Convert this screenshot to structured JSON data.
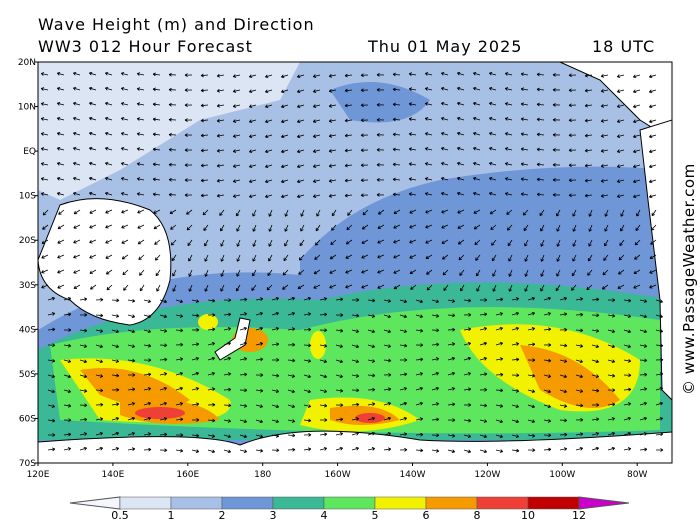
{
  "header": {
    "title": "Wave Height (m) and Direction",
    "subtitle": "WW3 012 Hour Forecast",
    "date": "Thu 01 May 2025",
    "time": "18 UTC"
  },
  "watermark": "© www.PassageWeather.com",
  "map": {
    "latitude_labels": [
      "20N",
      "10N",
      "EQ",
      "10S",
      "20S",
      "30S",
      "40S",
      "50S",
      "60S",
      "70S"
    ],
    "longitude_labels": [
      "120E",
      "140E",
      "160E",
      "180",
      "160W",
      "140W",
      "120W",
      "100W",
      "80W"
    ]
  },
  "legend": {
    "colors": [
      "#f4f6fb",
      "#dbe5f4",
      "#a8c0e6",
      "#6f96d7",
      "#3bb896",
      "#5ee65e",
      "#f2f200",
      "#f59b00",
      "#ee4036",
      "#c00000",
      "#cc00cc"
    ],
    "labels": [
      0.5,
      1,
      2,
      3,
      4,
      5,
      6,
      8,
      10,
      12
    ]
  }
}
